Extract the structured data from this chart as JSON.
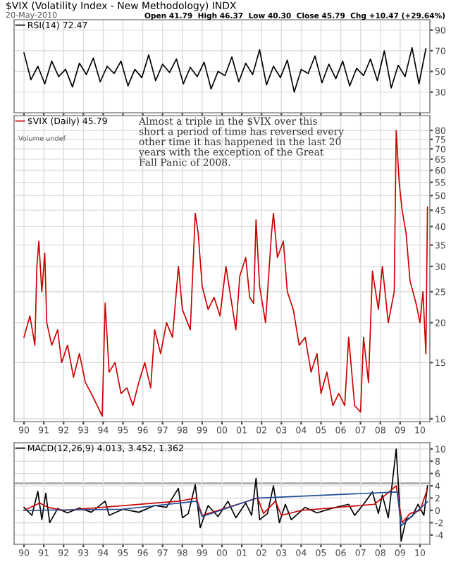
{
  "chart_data": [
    {
      "type": "line",
      "title": "$VIX (Volatility Index - New Methodology) INDX",
      "subtitle": "20-May-2010",
      "annotations": [
        "Open 41.79  High 46.37  Low 40.30  Close 45.79  Chg +10.47 (+29.64%)"
      ],
      "x": [
        1990,
        1990.35,
        1990.7,
        1991.05,
        1991.4,
        1991.75,
        1992.1,
        1992.45,
        1992.8,
        1993.15,
        1993.5,
        1993.85,
        1994.2,
        1994.55,
        1994.9,
        1995.25,
        1995.6,
        1995.95,
        1996.3,
        1996.65,
        1997,
        1997.35,
        1997.7,
        1998.05,
        1998.4,
        1998.75,
        1999.1,
        1999.45,
        1999.8,
        2000.15,
        2000.5,
        2000.85,
        2001.2,
        2001.55,
        2001.9,
        2002.25,
        2002.6,
        2002.95,
        2003.3,
        2003.65,
        2004,
        2004.35,
        2004.7,
        2005.05,
        2005.4,
        2005.75,
        2006.1,
        2006.45,
        2006.8,
        2007.15,
        2007.5,
        2007.85,
        2008.2,
        2008.55,
        2008.9,
        2009.25,
        2009.6,
        2009.95,
        2010.3
      ],
      "series": [
        {
          "name": "RSI(14) 72.47",
          "color": "#000000",
          "values": [
            68,
            42,
            55,
            38,
            60,
            45,
            52,
            35,
            58,
            47,
            63,
            40,
            55,
            48,
            60,
            36,
            52,
            44,
            66,
            41,
            57,
            49,
            62,
            38,
            54,
            45,
            59,
            33,
            50,
            46,
            64,
            40,
            58,
            47,
            71,
            37,
            55,
            44,
            61,
            30,
            52,
            48,
            65,
            39,
            57,
            43,
            60,
            36,
            53,
            46,
            62,
            41,
            70,
            34,
            56,
            45,
            73,
            38,
            72
          ]
        }
      ],
      "xlim": [
        1989.5,
        2010.5
      ],
      "ylim": [
        10,
        100
      ],
      "yticks": [
        30,
        50,
        70,
        90
      ],
      "xticks": [
        {
          "value": 1990,
          "label": null
        },
        {
          "value": 1991,
          "label": null
        },
        {
          "value": 1992,
          "label": null
        },
        {
          "value": 1993,
          "label": null
        },
        {
          "value": 1994,
          "label": null
        },
        {
          "value": 1995,
          "label": null
        },
        {
          "value": 1996,
          "label": null
        },
        {
          "value": 1997,
          "label": null
        },
        {
          "value": 1998,
          "label": null
        },
        {
          "value": 1999,
          "label": null
        },
        {
          "value": 2000,
          "label": null
        },
        {
          "value": 2001,
          "label": null
        },
        {
          "value": 2002,
          "label": null
        },
        {
          "value": 2003,
          "label": null
        },
        {
          "value": 2004,
          "label": null
        },
        {
          "value": 2005,
          "label": null
        },
        {
          "value": 2006,
          "label": null
        },
        {
          "value": 2007,
          "label": null
        },
        {
          "value": 2008,
          "label": null
        },
        {
          "value": 2009,
          "label": null
        },
        {
          "value": 2010,
          "label": null
        }
      ],
      "tick_labels": "y",
      "grid": true,
      "legend": "top left",
      "line_style": "solid",
      "marker": "none"
    },
    {
      "type": "line",
      "annotations": [
        "Almost a triple in the $VIX over this\nshort a period of time has reversed every\nother time it has happened in the last 20\nyears with the exception of the Great\nFall Panic of 2008.",
        "Volume undef"
      ],
      "x": [
        1990.0,
        1990.3,
        1990.55,
        1990.65,
        1990.75,
        1990.9,
        1991.05,
        1991.15,
        1991.4,
        1991.7,
        1991.9,
        1992.2,
        1992.5,
        1992.8,
        1993.1,
        1993.4,
        1993.7,
        1993.95,
        1994.1,
        1994.3,
        1994.6,
        1994.9,
        1995.2,
        1995.5,
        1995.8,
        1996.1,
        1996.4,
        1996.6,
        1996.9,
        1997.2,
        1997.5,
        1997.8,
        1998.0,
        1998.4,
        1998.65,
        1998.8,
        1999.0,
        1999.3,
        1999.6,
        1999.9,
        2000.2,
        2000.4,
        2000.7,
        2000.9,
        2001.2,
        2001.4,
        2001.6,
        2001.72,
        2001.9,
        2002.2,
        2002.5,
        2002.6,
        2002.8,
        2003.1,
        2003.3,
        2003.6,
        2003.9,
        2004.2,
        2004.5,
        2004.8,
        2005.0,
        2005.3,
        2005.6,
        2005.9,
        2006.2,
        2006.4,
        2006.7,
        2007.0,
        2007.15,
        2007.4,
        2007.6,
        2007.9,
        2008.1,
        2008.4,
        2008.7,
        2008.8,
        2008.95,
        2009.1,
        2009.3,
        2009.5,
        2009.8,
        2010.0,
        2010.15,
        2010.3,
        2010.38
      ],
      "series": [
        {
          "name": "$VIX (Daily) 45.79",
          "color": "#cc0000",
          "values": [
            18,
            21,
            17,
            30,
            36,
            25,
            33,
            20,
            17,
            19,
            15,
            17,
            13.5,
            16,
            13,
            12,
            11,
            10.2,
            23,
            14,
            15,
            12,
            12.5,
            11,
            13,
            15,
            12.5,
            19,
            16,
            20,
            18,
            30,
            22,
            19,
            44,
            38,
            26,
            22,
            24,
            21,
            30,
            25,
            19,
            28,
            32,
            24,
            23,
            42,
            26,
            20,
            38,
            44,
            32,
            36,
            25,
            22,
            17,
            18,
            14,
            16,
            12,
            14,
            11,
            12,
            11,
            18,
            11,
            10.5,
            18,
            13,
            29,
            22,
            30,
            20,
            25,
            80,
            55,
            45,
            38,
            27,
            23,
            20,
            25,
            16,
            46
          ]
        }
      ],
      "xlim": [
        1989.5,
        2010.5
      ],
      "ylim": [
        9.8,
        89
      ],
      "log": true,
      "yticks": [
        10,
        15,
        20,
        25,
        30,
        35,
        40,
        45,
        50,
        55,
        60,
        65,
        70,
        75,
        80
      ],
      "xticks": [
        {
          "value": 1990,
          "label": "90"
        },
        {
          "value": 1991,
          "label": "91"
        },
        {
          "value": 1992,
          "label": "92"
        },
        {
          "value": 1993,
          "label": "93"
        },
        {
          "value": 1994,
          "label": "94"
        },
        {
          "value": 1995,
          "label": "95"
        },
        {
          "value": 1996,
          "label": "96"
        },
        {
          "value": 1997,
          "label": "97"
        },
        {
          "value": 1998,
          "label": "98"
        },
        {
          "value": 1999,
          "label": "99"
        },
        {
          "value": 2000,
          "label": "00"
        },
        {
          "value": 2001,
          "label": "01"
        },
        {
          "value": 2002,
          "label": "02"
        },
        {
          "value": 2003,
          "label": "03"
        },
        {
          "value": 2004,
          "label": "04"
        },
        {
          "value": 2005,
          "label": "05"
        },
        {
          "value": 2006,
          "label": "06"
        },
        {
          "value": 2007,
          "label": "07"
        },
        {
          "value": 2008,
          "label": "08"
        },
        {
          "value": 2009,
          "label": "09"
        },
        {
          "value": 2010,
          "label": "10"
        }
      ],
      "grid": true,
      "legend": "top left",
      "line_style": "solid",
      "marker": "none"
    },
    {
      "type": "line",
      "series": [
        {
          "name": "MACD(12,26,9) 4.013, 3.452, 1.362",
          "color": "#000000",
          "x": [
            1990.0,
            1990.4,
            1990.7,
            1990.9,
            1991.1,
            1991.3,
            1991.7,
            1992.2,
            1992.8,
            1993.4,
            1994.1,
            1994.3,
            1995,
            1995.8,
            1996.6,
            1997.2,
            1997.8,
            1998.0,
            1998.3,
            1998.65,
            1998.9,
            1999.3,
            1999.8,
            2000.3,
            2000.7,
            2001.2,
            2001.5,
            2001.72,
            2001.9,
            2002.3,
            2002.6,
            2002.9,
            2003.2,
            2003.5,
            2004.2,
            2004.8,
            2005.5,
            2006.4,
            2006.7,
            2007.2,
            2007.6,
            2007.9,
            2008.1,
            2008.4,
            2008.8,
            2008.95,
            2009.05,
            2009.3,
            2009.6,
            2009.9,
            2010.2,
            2010.38
          ],
          "values": [
            0.5,
            -0.8,
            3.1,
            -1.5,
            2.8,
            -2,
            0.3,
            -0.4,
            0.4,
            -0.3,
            1.5,
            -0.8,
            0.2,
            -0.3,
            0.8,
            0.5,
            3.6,
            -1.2,
            -0.5,
            4.2,
            -2.8,
            0.8,
            -1.0,
            1.5,
            -1.2,
            1.2,
            -0.8,
            5.2,
            -1.5,
            -0.5,
            4.0,
            -2.0,
            1.0,
            -1.5,
            0.5,
            -0.4,
            0.3,
            1.0,
            -0.8,
            1.2,
            3.0,
            -0.5,
            2.5,
            -1.2,
            10.0,
            2.0,
            -5.0,
            -1.5,
            -1.0,
            1.0,
            -0.8,
            4.0
          ]
        },
        {
          "color": "#cc0000",
          "x": [
            1990,
            1990.8,
            1991.2,
            1992,
            1997.8,
            1998.7,
            1999,
            2001.8,
            2002.1,
            2002.7,
            2003.0,
            2004,
            2007.7,
            2008.8,
            2009.1,
            2009.5,
            2010.0,
            2010.38
          ],
          "values": [
            0,
            1.2,
            0.5,
            0,
            1.5,
            2.0,
            -0.8,
            2.0,
            -0.5,
            1.5,
            -0.8,
            0,
            1.0,
            4.0,
            -2.0,
            -0.5,
            0,
            3.5
          ]
        },
        {
          "color": "#1f4e99",
          "x": [
            1990,
            1995,
            1998.7,
            1999,
            2001.75,
            2008.85,
            2009.05,
            2010.38
          ],
          "values": [
            0,
            0.2,
            1.5,
            -1,
            2,
            3,
            -2.5,
            1.4
          ]
        }
      ],
      "ref_lines": [
        {
          "axis": "y",
          "value": 4.4,
          "color": "#aaaaaa"
        }
      ],
      "xlim": [
        1989.5,
        2010.5
      ],
      "ylim": [
        -5.5,
        11
      ],
      "yticks": [
        -4,
        -2,
        0,
        2,
        4,
        6,
        8,
        10
      ],
      "xticks": [
        {
          "value": 1990,
          "label": "90"
        },
        {
          "value": 1991,
          "label": "91"
        },
        {
          "value": 1992,
          "label": "92"
        },
        {
          "value": 1993,
          "label": "93"
        },
        {
          "value": 1994,
          "label": "94"
        },
        {
          "value": 1995,
          "label": "95"
        },
        {
          "value": 1996,
          "label": "96"
        },
        {
          "value": 1997,
          "label": "97"
        },
        {
          "value": 1998,
          "label": "98"
        },
        {
          "value": 1999,
          "label": "99"
        },
        {
          "value": 2000,
          "label": "00"
        },
        {
          "value": 2001,
          "label": "01"
        },
        {
          "value": 2002,
          "label": "02"
        },
        {
          "value": 2003,
          "label": "03"
        },
        {
          "value": 2004,
          "label": "04"
        },
        {
          "value": 2005,
          "label": "05"
        },
        {
          "value": 2006,
          "label": "06"
        },
        {
          "value": 2007,
          "label": "07"
        },
        {
          "value": 2008,
          "label": "08"
        },
        {
          "value": 2009,
          "label": "09"
        },
        {
          "value": 2010,
          "label": "10"
        }
      ],
      "grid": true,
      "legend": "top left",
      "line_style": "solid",
      "marker": "none"
    }
  ]
}
